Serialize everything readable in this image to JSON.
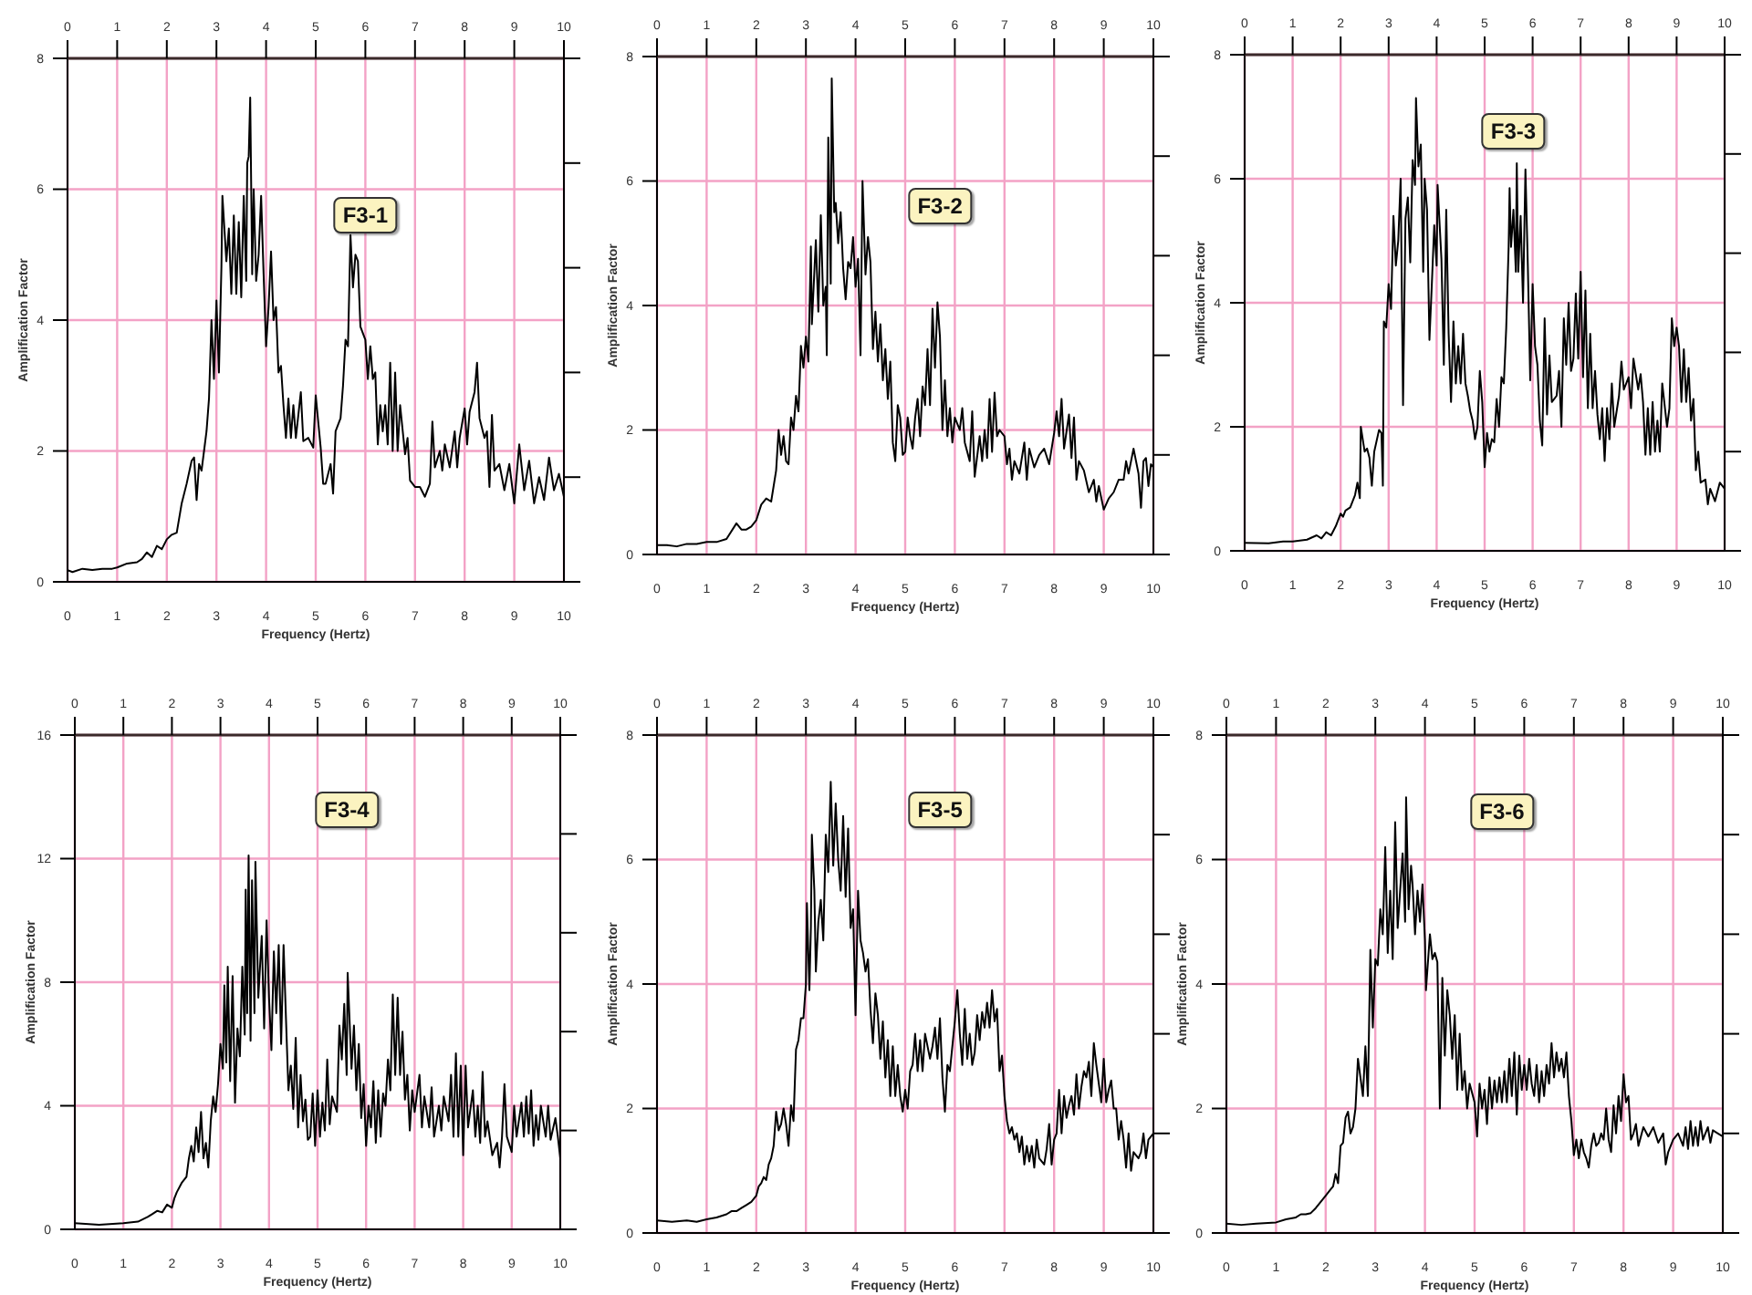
{
  "chart_data": [
    {
      "type": "line",
      "title": "F3-1",
      "xlabel": "Frequency (Hertz)",
      "ylabel": "Amplification Factor",
      "color": "#000000",
      "grid": true,
      "xlim": [
        0,
        10
      ],
      "xticks": [
        0,
        1,
        2,
        3,
        4,
        5,
        6,
        7,
        8,
        9,
        10
      ],
      "x2lim": [
        0,
        10
      ],
      "x2ticks": [
        0,
        1,
        2,
        3,
        4,
        5,
        6,
        7,
        8,
        9,
        10
      ],
      "ylim": [
        0,
        8
      ],
      "yticks": [
        0,
        2,
        4,
        6,
        8
      ],
      "x": [
        0,
        0.1,
        0.3,
        0.5,
        0.7,
        0.9,
        1.0,
        1.2,
        1.4,
        1.5,
        1.6,
        1.7,
        1.8,
        1.9,
        2.0,
        2.1,
        2.2,
        2.3,
        2.4,
        2.5,
        2.55,
        2.6,
        2.65,
        2.7,
        2.75,
        2.8,
        2.85,
        2.9,
        2.95,
        3.0,
        3.05,
        3.1,
        3.12,
        3.2,
        3.25,
        3.3,
        3.35,
        3.4,
        3.45,
        3.5,
        3.55,
        3.6,
        3.62,
        3.65,
        3.68,
        3.72,
        3.75,
        3.8,
        3.85,
        3.9,
        3.95,
        4.0,
        4.05,
        4.1,
        4.15,
        4.2,
        4.25,
        4.3,
        4.35,
        4.4,
        4.45,
        4.5,
        4.55,
        4.6,
        4.7,
        4.75,
        4.85,
        4.95,
        5.0,
        5.1,
        5.15,
        5.2,
        5.3,
        5.35,
        5.4,
        5.5,
        5.55,
        5.6,
        5.65,
        5.7,
        5.75,
        5.8,
        5.85,
        5.9,
        6.0,
        6.05,
        6.1,
        6.15,
        6.2,
        6.25,
        6.3,
        6.35,
        6.4,
        6.45,
        6.5,
        6.55,
        6.6,
        6.65,
        6.7,
        6.8,
        6.85,
        6.9,
        7.0,
        7.1,
        7.2,
        7.3,
        7.35,
        7.4,
        7.5,
        7.55,
        7.6,
        7.7,
        7.8,
        7.85,
        7.9,
        8.0,
        8.05,
        8.1,
        8.2,
        8.25,
        8.3,
        8.4,
        8.45,
        8.5,
        8.55,
        8.6,
        8.7,
        8.8,
        8.9,
        9.0,
        9.1,
        9.2,
        9.3,
        9.4,
        9.5,
        9.6,
        9.7,
        9.8,
        9.9,
        10.0
      ],
      "values": [
        0.18,
        0.15,
        0.2,
        0.18,
        0.2,
        0.2,
        0.22,
        0.28,
        0.3,
        0.35,
        0.45,
        0.38,
        0.55,
        0.5,
        0.65,
        0.72,
        0.75,
        1.2,
        1.5,
        1.85,
        1.9,
        1.25,
        1.8,
        1.7,
        2.0,
        2.3,
        2.8,
        4.0,
        3.1,
        4.3,
        3.2,
        4.8,
        5.9,
        4.9,
        5.4,
        4.4,
        5.6,
        4.4,
        5.5,
        4.35,
        5.9,
        4.6,
        6.4,
        6.5,
        7.4,
        4.7,
        6.0,
        4.6,
        5.0,
        5.9,
        4.7,
        3.6,
        4.2,
        5.05,
        4.0,
        4.2,
        3.2,
        3.3,
        2.7,
        2.2,
        2.8,
        2.2,
        2.7,
        2.2,
        2.9,
        2.15,
        2.2,
        2.05,
        2.85,
        2.05,
        1.5,
        1.5,
        1.8,
        1.35,
        2.3,
        2.5,
        3.0,
        3.7,
        3.6,
        5.3,
        4.5,
        5.0,
        4.9,
        3.9,
        3.7,
        3.1,
        3.6,
        3.1,
        3.2,
        2.1,
        2.7,
        2.3,
        2.7,
        2.1,
        3.35,
        2.0,
        3.2,
        2.0,
        2.7,
        1.95,
        2.2,
        1.55,
        1.45,
        1.45,
        1.3,
        1.5,
        2.45,
        1.75,
        2.0,
        1.7,
        2.1,
        1.75,
        2.3,
        1.75,
        2.2,
        2.65,
        2.1,
        2.6,
        2.9,
        3.35,
        2.5,
        2.2,
        2.3,
        1.45,
        2.55,
        1.7,
        1.8,
        1.4,
        1.8,
        1.2,
        2.1,
        1.4,
        1.85,
        1.2,
        1.6,
        1.25,
        1.9,
        1.4,
        1.65,
        1.3
      ]
    },
    {
      "type": "line",
      "title": "F3-2",
      "xlabel": "Frequency (Hertz)",
      "ylabel": "Amplification Factor",
      "color": "#000000",
      "grid": true,
      "xlim": [
        0,
        10
      ],
      "xticks": [
        0,
        1,
        2,
        3,
        4,
        5,
        6,
        7,
        8,
        9,
        10
      ],
      "x2lim": [
        0,
        10
      ],
      "x2ticks": [
        0,
        1,
        2,
        3,
        4,
        5,
        6,
        7,
        8,
        9,
        10
      ],
      "ylim": [
        0,
        8
      ],
      "yticks": [
        0,
        2,
        4,
        6,
        8
      ],
      "x": [
        0,
        0.2,
        0.4,
        0.6,
        0.8,
        1.0,
        1.2,
        1.4,
        1.6,
        1.7,
        1.8,
        1.9,
        2.0,
        2.1,
        2.2,
        2.3,
        2.4,
        2.45,
        2.5,
        2.55,
        2.6,
        2.65,
        2.7,
        2.75,
        2.8,
        2.85,
        2.9,
        2.95,
        3.0,
        3.05,
        3.1,
        3.12,
        3.2,
        3.25,
        3.3,
        3.35,
        3.4,
        3.42,
        3.45,
        3.5,
        3.52,
        3.57,
        3.6,
        3.65,
        3.7,
        3.75,
        3.8,
        3.85,
        3.9,
        3.95,
        4.0,
        4.05,
        4.1,
        4.14,
        4.2,
        4.25,
        4.3,
        4.35,
        4.4,
        4.45,
        4.5,
        4.55,
        4.6,
        4.65,
        4.7,
        4.75,
        4.8,
        4.85,
        4.9,
        4.95,
        5.0,
        5.05,
        5.1,
        5.15,
        5.2,
        5.25,
        5.3,
        5.35,
        5.4,
        5.45,
        5.5,
        5.55,
        5.6,
        5.65,
        5.7,
        5.75,
        5.8,
        5.85,
        5.9,
        5.95,
        6.0,
        6.1,
        6.15,
        6.2,
        6.3,
        6.35,
        6.4,
        6.5,
        6.55,
        6.6,
        6.65,
        6.7,
        6.75,
        6.8,
        6.85,
        6.9,
        7.0,
        7.05,
        7.1,
        7.15,
        7.2,
        7.3,
        7.4,
        7.45,
        7.5,
        7.6,
        7.7,
        7.8,
        7.9,
        8.0,
        8.05,
        8.1,
        8.15,
        8.2,
        8.3,
        8.35,
        8.4,
        8.45,
        8.5,
        8.6,
        8.7,
        8.8,
        8.85,
        8.9,
        9.0,
        9.1,
        9.2,
        9.3,
        9.4,
        9.45,
        9.5,
        9.6,
        9.7,
        9.75,
        9.8,
        9.85,
        9.9,
        9.95,
        10.0
      ],
      "values": [
        0.15,
        0.15,
        0.13,
        0.17,
        0.17,
        0.2,
        0.2,
        0.25,
        0.5,
        0.4,
        0.4,
        0.45,
        0.55,
        0.8,
        0.9,
        0.85,
        1.35,
        2.0,
        1.6,
        1.9,
        1.5,
        1.45,
        2.2,
        2.0,
        2.55,
        2.3,
        3.35,
        3.0,
        3.5,
        3.1,
        4.95,
        3.7,
        5.05,
        3.9,
        5.45,
        4.0,
        4.3,
        3.2,
        6.7,
        4.35,
        7.65,
        5.5,
        5.65,
        5.0,
        5.5,
        4.6,
        4.1,
        4.7,
        4.6,
        5.1,
        4.3,
        4.75,
        3.2,
        6.0,
        4.5,
        5.1,
        4.7,
        3.3,
        3.9,
        3.1,
        3.7,
        2.8,
        3.3,
        2.5,
        3.1,
        1.8,
        1.5,
        2.4,
        2.2,
        1.6,
        1.65,
        2.2,
        1.9,
        1.7,
        2.2,
        2.5,
        1.9,
        2.7,
        2.4,
        3.3,
        2.4,
        3.95,
        3.0,
        4.05,
        3.5,
        2.0,
        2.8,
        1.9,
        2.35,
        1.8,
        2.2,
        2.0,
        2.35,
        1.8,
        1.5,
        2.3,
        1.25,
        1.9,
        1.5,
        2.0,
        1.55,
        2.5,
        1.65,
        2.6,
        1.9,
        2.0,
        1.9,
        1.45,
        1.7,
        1.2,
        1.5,
        1.3,
        1.8,
        1.2,
        1.7,
        1.4,
        1.6,
        1.7,
        1.45,
        1.95,
        2.3,
        1.9,
        2.5,
        1.7,
        2.25,
        1.55,
        2.2,
        1.2,
        1.5,
        1.35,
        1.0,
        1.2,
        0.85,
        1.1,
        0.72,
        0.9,
        1.0,
        1.2,
        1.2,
        1.5,
        1.3,
        1.7,
        1.3,
        0.75,
        1.5,
        1.55,
        1.1,
        1.45,
        1.4
      ]
    },
    {
      "type": "line",
      "title": "F3-3",
      "xlabel": "Frequency (Hertz)",
      "ylabel": "Amplification Factor",
      "color": "#000000",
      "grid": true,
      "xlim": [
        0,
        10
      ],
      "xticks": [
        0,
        1,
        2,
        3,
        4,
        5,
        6,
        7,
        8,
        9,
        10
      ],
      "x2lim": [
        0,
        10
      ],
      "x2ticks": [
        0,
        1,
        2,
        3,
        4,
        5,
        6,
        7,
        8,
        9,
        10
      ],
      "ylim": [
        0,
        8
      ],
      "yticks": [
        0,
        2,
        4,
        6,
        8
      ],
      "x": [
        0,
        0.5,
        0.8,
        1.0,
        1.3,
        1.5,
        1.6,
        1.7,
        1.8,
        1.9,
        2.0,
        2.05,
        2.1,
        2.2,
        2.3,
        2.35,
        2.4,
        2.42,
        2.5,
        2.55,
        2.6,
        2.65,
        2.7,
        2.8,
        2.85,
        2.88,
        2.9,
        2.95,
        3.0,
        3.05,
        3.1,
        3.15,
        3.2,
        3.25,
        3.3,
        3.35,
        3.4,
        3.45,
        3.5,
        3.55,
        3.57,
        3.62,
        3.67,
        3.72,
        3.75,
        3.8,
        3.85,
        3.9,
        3.95,
        4.0,
        4.02,
        4.1,
        4.15,
        4.2,
        4.25,
        4.3,
        4.35,
        4.4,
        4.45,
        4.5,
        4.55,
        4.6,
        4.65,
        4.7,
        4.75,
        4.8,
        4.85,
        4.9,
        4.95,
        5.0,
        5.05,
        5.1,
        5.15,
        5.2,
        5.25,
        5.3,
        5.35,
        5.4,
        5.45,
        5.5,
        5.52,
        5.55,
        5.6,
        5.65,
        5.67,
        5.7,
        5.75,
        5.8,
        5.85,
        5.9,
        5.95,
        6.0,
        6.05,
        6.1,
        6.15,
        6.2,
        6.25,
        6.3,
        6.35,
        6.4,
        6.5,
        6.55,
        6.6,
        6.65,
        6.7,
        6.75,
        6.8,
        6.85,
        6.9,
        6.95,
        7.0,
        7.05,
        7.1,
        7.15,
        7.2,
        7.25,
        7.3,
        7.35,
        7.4,
        7.45,
        7.5,
        7.55,
        7.6,
        7.65,
        7.7,
        7.8,
        7.85,
        7.9,
        8.0,
        8.05,
        8.1,
        8.2,
        8.25,
        8.3,
        8.35,
        8.4,
        8.45,
        8.5,
        8.55,
        8.6,
        8.65,
        8.7,
        8.8,
        8.85,
        8.9,
        8.95,
        9.0,
        9.05,
        9.1,
        9.15,
        9.2,
        9.25,
        9.3,
        9.35,
        9.4,
        9.45,
        9.5,
        9.6,
        9.65,
        9.7,
        9.8,
        9.9,
        10.0
      ],
      "values": [
        0.13,
        0.12,
        0.15,
        0.15,
        0.18,
        0.25,
        0.2,
        0.3,
        0.25,
        0.4,
        0.6,
        0.55,
        0.65,
        0.7,
        0.9,
        1.1,
        0.85,
        2.0,
        1.6,
        1.65,
        1.5,
        1.05,
        1.6,
        1.95,
        1.9,
        1.05,
        3.7,
        3.6,
        4.3,
        3.9,
        5.4,
        4.6,
        5.0,
        6.0,
        2.35,
        5.35,
        5.7,
        4.65,
        6.3,
        5.9,
        7.3,
        6.2,
        6.55,
        4.5,
        6.0,
        5.5,
        3.4,
        4.3,
        5.25,
        4.6,
        5.9,
        4.7,
        3.0,
        5.5,
        3.5,
        2.4,
        3.7,
        2.7,
        3.3,
        2.7,
        3.5,
        2.7,
        2.5,
        2.25,
        2.1,
        1.8,
        2.0,
        2.9,
        2.4,
        1.35,
        1.9,
        1.6,
        1.8,
        1.75,
        2.45,
        2.0,
        2.8,
        2.7,
        3.6,
        4.9,
        5.85,
        4.9,
        5.5,
        4.5,
        6.25,
        4.5,
        5.4,
        4.0,
        6.15,
        4.6,
        2.75,
        4.3,
        3.3,
        3.0,
        2.1,
        1.7,
        3.75,
        2.2,
        3.15,
        2.4,
        2.5,
        2.9,
        2.0,
        3.75,
        3.0,
        4.0,
        2.9,
        3.1,
        4.15,
        3.1,
        4.5,
        2.8,
        4.2,
        2.3,
        3.5,
        2.3,
        2.9,
        2.2,
        1.8,
        2.3,
        1.45,
        2.3,
        1.8,
        2.7,
        2.0,
        2.5,
        3.05,
        2.6,
        2.8,
        2.3,
        3.1,
        2.6,
        2.85,
        2.4,
        1.55,
        2.3,
        1.55,
        2.4,
        1.6,
        2.1,
        1.6,
        2.7,
        2.0,
        2.3,
        3.75,
        3.3,
        3.6,
        3.3,
        2.4,
        3.25,
        2.4,
        2.95,
        2.1,
        2.45,
        1.3,
        1.6,
        1.1,
        1.15,
        0.75,
        1.0,
        0.8,
        1.1,
        1.0
      ]
    },
    {
      "type": "line",
      "title": "F3-4",
      "xlabel": "Frequency (Hertz)",
      "ylabel": "Amplification Factor",
      "color": "#000000",
      "grid": true,
      "xlim": [
        0,
        10
      ],
      "xticks": [
        0,
        1,
        2,
        3,
        4,
        5,
        6,
        7,
        8,
        9,
        10
      ],
      "x2lim": [
        0,
        10
      ],
      "x2ticks": [
        0,
        1,
        2,
        3,
        4,
        5,
        6,
        7,
        8,
        9,
        10
      ],
      "ylim": [
        0,
        16
      ],
      "yticks": [
        0,
        4,
        8,
        12,
        16
      ],
      "x": [
        0,
        0.5,
        1.0,
        1.3,
        1.5,
        1.6,
        1.7,
        1.8,
        1.9,
        2.0,
        2.05,
        2.1,
        2.2,
        2.3,
        2.35,
        2.4,
        2.45,
        2.5,
        2.55,
        2.6,
        2.65,
        2.7,
        2.75,
        2.8,
        2.85,
        2.9,
        2.95,
        3.0,
        3.05,
        3.08,
        3.12,
        3.15,
        3.2,
        3.25,
        3.3,
        3.35,
        3.4,
        3.45,
        3.5,
        3.52,
        3.55,
        3.58,
        3.62,
        3.65,
        3.7,
        3.72,
        3.78,
        3.85,
        3.9,
        3.95,
        4.0,
        4.05,
        4.1,
        4.15,
        4.2,
        4.25,
        4.3,
        4.35,
        4.4,
        4.45,
        4.5,
        4.55,
        4.6,
        4.65,
        4.7,
        4.75,
        4.8,
        4.85,
        4.9,
        4.95,
        5.0,
        5.05,
        5.1,
        5.15,
        5.2,
        5.25,
        5.3,
        5.4,
        5.45,
        5.5,
        5.55,
        5.6,
        5.62,
        5.7,
        5.75,
        5.8,
        5.85,
        5.9,
        5.95,
        6.0,
        6.05,
        6.1,
        6.15,
        6.2,
        6.25,
        6.3,
        6.35,
        6.4,
        6.45,
        6.5,
        6.55,
        6.6,
        6.65,
        6.7,
        6.75,
        6.8,
        6.85,
        6.9,
        6.95,
        7.0,
        7.1,
        7.15,
        7.2,
        7.3,
        7.35,
        7.4,
        7.5,
        7.55,
        7.6,
        7.7,
        7.75,
        7.8,
        7.85,
        7.9,
        7.95,
        8.0,
        8.05,
        8.1,
        8.2,
        8.25,
        8.3,
        8.35,
        8.4,
        8.45,
        8.5,
        8.6,
        8.7,
        8.75,
        8.8,
        8.85,
        8.9,
        9.0,
        9.05,
        9.1,
        9.2,
        9.25,
        9.3,
        9.35,
        9.4,
        9.45,
        9.5,
        9.55,
        9.6,
        9.7,
        9.75,
        9.8,
        9.9,
        9.95,
        10.0
      ],
      "values": [
        0.2,
        0.15,
        0.2,
        0.25,
        0.4,
        0.5,
        0.6,
        0.55,
        0.8,
        0.7,
        1.0,
        1.2,
        1.5,
        1.7,
        2.3,
        2.7,
        2.2,
        3.3,
        2.5,
        3.8,
        2.3,
        2.8,
        2.0,
        3.5,
        4.3,
        3.8,
        4.7,
        6.0,
        5.2,
        7.9,
        5.4,
        8.5,
        4.8,
        8.2,
        4.1,
        6.5,
        5.6,
        8.5,
        6.3,
        11.0,
        7.0,
        12.1,
        6.1,
        11.3,
        7.0,
        11.9,
        7.5,
        9.5,
        6.5,
        10.0,
        7.5,
        5.8,
        9.0,
        7.0,
        9.2,
        6.0,
        9.2,
        6.8,
        4.5,
        5.3,
        3.9,
        6.2,
        3.3,
        5.0,
        3.5,
        4.2,
        2.9,
        3.0,
        4.4,
        2.7,
        4.5,
        3.0,
        4.1,
        3.2,
        5.5,
        3.4,
        4.3,
        3.8,
        6.6,
        5.5,
        7.3,
        5.0,
        8.3,
        5.2,
        6.6,
        4.5,
        6.0,
        3.6,
        4.7,
        2.7,
        4.0,
        3.3,
        4.8,
        2.8,
        4.5,
        3.0,
        4.4,
        4.0,
        5.5,
        4.5,
        7.6,
        5.0,
        7.5,
        5.0,
        6.4,
        4.2,
        5.0,
        3.2,
        4.5,
        3.8,
        5.0,
        3.3,
        4.3,
        3.3,
        4.6,
        3.0,
        4.0,
        3.2,
        4.3,
        3.5,
        5.0,
        3.0,
        5.7,
        3.0,
        5.3,
        2.4,
        5.3,
        3.3,
        4.5,
        3.0,
        4.0,
        2.8,
        5.1,
        3.0,
        3.5,
        2.4,
        2.8,
        2.0,
        3.0,
        4.7,
        3.0,
        2.5,
        4.0,
        3.0,
        4.1,
        3.0,
        4.3,
        3.1,
        4.5,
        2.7,
        3.7,
        2.9,
        4.0,
        3.0,
        4.0,
        2.9,
        3.6,
        3.0,
        2.3
      ]
    },
    {
      "type": "line",
      "title": "F3-5",
      "xlabel": "Frequency (Hertz)",
      "ylabel": "Amplification Factor",
      "color": "#000000",
      "grid": true,
      "xlim": [
        0,
        10
      ],
      "xticks": [
        0,
        1,
        2,
        3,
        4,
        5,
        6,
        7,
        8,
        9,
        10
      ],
      "x2lim": [
        0,
        10
      ],
      "x2ticks": [
        0,
        1,
        2,
        3,
        4,
        5,
        6,
        7,
        8,
        9,
        10
      ],
      "ylim": [
        0,
        8
      ],
      "yticks": [
        0,
        2,
        4,
        6,
        8
      ],
      "x": [
        0,
        0.3,
        0.6,
        0.8,
        1.0,
        1.2,
        1.4,
        1.5,
        1.6,
        1.7,
        1.8,
        1.9,
        2.0,
        2.05,
        2.1,
        2.15,
        2.2,
        2.25,
        2.3,
        2.35,
        2.4,
        2.45,
        2.5,
        2.55,
        2.6,
        2.65,
        2.7,
        2.75,
        2.8,
        2.85,
        2.9,
        2.95,
        3.0,
        3.02,
        3.07,
        3.1,
        3.12,
        3.17,
        3.2,
        3.25,
        3.3,
        3.35,
        3.4,
        3.45,
        3.5,
        3.55,
        3.6,
        3.65,
        3.7,
        3.75,
        3.8,
        3.85,
        3.9,
        3.95,
        4.0,
        4.05,
        4.1,
        4.15,
        4.2,
        4.25,
        4.3,
        4.35,
        4.4,
        4.45,
        4.5,
        4.55,
        4.6,
        4.65,
        4.7,
        4.75,
        4.8,
        4.85,
        4.9,
        4.95,
        5.0,
        5.05,
        5.1,
        5.15,
        5.2,
        5.25,
        5.3,
        5.35,
        5.4,
        5.5,
        5.55,
        5.6,
        5.65,
        5.7,
        5.75,
        5.8,
        5.85,
        5.9,
        6.0,
        6.05,
        6.1,
        6.15,
        6.2,
        6.25,
        6.3,
        6.35,
        6.4,
        6.45,
        6.5,
        6.55,
        6.6,
        6.65,
        6.7,
        6.75,
        6.8,
        6.85,
        6.9,
        6.95,
        7.0,
        7.05,
        7.1,
        7.15,
        7.2,
        7.25,
        7.3,
        7.35,
        7.4,
        7.45,
        7.5,
        7.55,
        7.6,
        7.65,
        7.7,
        7.8,
        7.85,
        7.9,
        7.95,
        8.0,
        8.05,
        8.1,
        8.15,
        8.2,
        8.25,
        8.3,
        8.35,
        8.4,
        8.45,
        8.5,
        8.55,
        8.6,
        8.65,
        8.7,
        8.75,
        8.8,
        8.85,
        8.9,
        8.95,
        9.0,
        9.05,
        9.1,
        9.15,
        9.2,
        9.25,
        9.3,
        9.35,
        9.4,
        9.45,
        9.5,
        9.55,
        9.6,
        9.7,
        9.75,
        9.8,
        9.85,
        9.9,
        10.0
      ],
      "values": [
        0.2,
        0.18,
        0.2,
        0.18,
        0.22,
        0.25,
        0.3,
        0.35,
        0.35,
        0.4,
        0.45,
        0.5,
        0.6,
        0.75,
        0.8,
        0.9,
        0.85,
        1.1,
        1.2,
        1.4,
        1.95,
        1.65,
        1.75,
        2.0,
        1.75,
        1.4,
        2.05,
        1.8,
        2.95,
        3.1,
        3.45,
        3.45,
        4.0,
        5.3,
        3.9,
        4.9,
        6.4,
        5.5,
        4.2,
        5.0,
        5.35,
        4.7,
        6.4,
        5.8,
        7.25,
        5.9,
        6.9,
        6.0,
        5.5,
        6.7,
        5.4,
        6.5,
        4.9,
        5.2,
        3.5,
        5.5,
        4.7,
        4.5,
        4.2,
        4.4,
        3.6,
        3.05,
        3.85,
        3.5,
        2.8,
        3.4,
        2.5,
        3.1,
        2.2,
        3.0,
        2.2,
        2.7,
        2.2,
        1.95,
        2.3,
        2.0,
        2.6,
        2.7,
        3.2,
        2.6,
        3.1,
        2.6,
        3.2,
        2.8,
        3.0,
        3.3,
        2.8,
        3.45,
        2.5,
        1.95,
        2.7,
        2.6,
        3.4,
        3.9,
        3.2,
        2.7,
        3.6,
        2.8,
        3.2,
        2.7,
        2.9,
        3.5,
        3.1,
        3.55,
        3.3,
        3.7,
        3.3,
        3.9,
        3.4,
        3.6,
        2.6,
        2.85,
        2.2,
        1.8,
        1.6,
        1.7,
        1.5,
        1.6,
        1.3,
        1.55,
        1.1,
        1.4,
        1.15,
        1.4,
        1.05,
        1.5,
        1.2,
        1.1,
        1.35,
        1.75,
        1.1,
        1.5,
        1.6,
        2.3,
        1.6,
        2.2,
        1.85,
        2.05,
        2.2,
        1.9,
        2.55,
        2.0,
        2.35,
        2.6,
        2.5,
        2.75,
        2.2,
        3.05,
        2.7,
        2.4,
        2.1,
        2.8,
        2.1,
        2.3,
        2.45,
        2.0,
        2.0,
        1.5,
        1.8,
        1.5,
        1.05,
        1.6,
        1.0,
        1.3,
        1.2,
        1.3,
        1.6,
        1.2,
        1.5,
        1.6
      ]
    },
    {
      "type": "line",
      "title": "F3-6",
      "xlabel": "Frequency (Hertz)",
      "ylabel": "Amplification Factor",
      "color": "#000000",
      "grid": true,
      "xlim": [
        0,
        10
      ],
      "xticks": [
        0,
        1,
        2,
        3,
        4,
        5,
        6,
        7,
        8,
        9,
        10
      ],
      "x2lim": [
        0,
        10
      ],
      "x2ticks": [
        0,
        1,
        2,
        3,
        4,
        5,
        6,
        7,
        8,
        9,
        10
      ],
      "ylim": [
        0,
        8
      ],
      "yticks": [
        0,
        2,
        4,
        6,
        8
      ],
      "x": [
        0,
        0.3,
        0.6,
        1.0,
        1.2,
        1.4,
        1.5,
        1.6,
        1.7,
        1.8,
        1.9,
        2.0,
        2.1,
        2.15,
        2.2,
        2.25,
        2.3,
        2.35,
        2.4,
        2.45,
        2.5,
        2.55,
        2.6,
        2.65,
        2.7,
        2.75,
        2.8,
        2.85,
        2.9,
        2.95,
        3.0,
        3.05,
        3.1,
        3.15,
        3.2,
        3.25,
        3.3,
        3.35,
        3.4,
        3.45,
        3.5,
        3.55,
        3.6,
        3.62,
        3.67,
        3.72,
        3.75,
        3.8,
        3.85,
        3.9,
        3.95,
        4.0,
        4.02,
        4.1,
        4.15,
        4.2,
        4.25,
        4.3,
        4.35,
        4.4,
        4.45,
        4.5,
        4.55,
        4.6,
        4.65,
        4.7,
        4.75,
        4.8,
        4.85,
        4.9,
        5.0,
        5.05,
        5.1,
        5.15,
        5.2,
        5.25,
        5.3,
        5.35,
        5.4,
        5.45,
        5.5,
        5.55,
        5.6,
        5.65,
        5.7,
        5.75,
        5.8,
        5.85,
        5.9,
        5.95,
        6.0,
        6.05,
        6.1,
        6.15,
        6.2,
        6.25,
        6.3,
        6.35,
        6.4,
        6.45,
        6.5,
        6.55,
        6.6,
        6.65,
        6.7,
        6.75,
        6.8,
        6.85,
        6.9,
        6.95,
        7.0,
        7.05,
        7.1,
        7.15,
        7.2,
        7.25,
        7.3,
        7.35,
        7.4,
        7.45,
        7.5,
        7.55,
        7.6,
        7.65,
        7.7,
        7.75,
        7.8,
        7.85,
        7.9,
        7.95,
        8.0,
        8.05,
        8.1,
        8.15,
        8.2,
        8.25,
        8.3,
        8.4,
        8.5,
        8.6,
        8.7,
        8.8,
        8.85,
        8.9,
        9.0,
        9.1,
        9.2,
        9.25,
        9.3,
        9.35,
        9.4,
        9.45,
        9.5,
        9.55,
        9.6,
        9.7,
        9.75,
        9.8,
        9.9,
        10.0
      ],
      "values": [
        0.15,
        0.13,
        0.15,
        0.17,
        0.22,
        0.25,
        0.3,
        0.3,
        0.32,
        0.4,
        0.5,
        0.6,
        0.7,
        0.75,
        0.95,
        0.8,
        1.4,
        1.45,
        1.85,
        1.95,
        1.6,
        1.7,
        2.0,
        2.8,
        2.5,
        2.2,
        3.0,
        2.2,
        4.55,
        3.3,
        4.4,
        4.3,
        5.2,
        4.8,
        6.2,
        4.5,
        5.5,
        4.4,
        6.6,
        4.9,
        5.5,
        6.1,
        5.0,
        7.0,
        5.2,
        5.9,
        5.6,
        4.8,
        5.5,
        5.0,
        5.6,
        4.7,
        3.9,
        4.8,
        4.4,
        4.5,
        4.35,
        2.0,
        4.1,
        2.85,
        3.9,
        3.5,
        2.8,
        3.5,
        2.3,
        3.2,
        2.3,
        2.6,
        2.0,
        2.4,
        2.1,
        1.55,
        2.4,
        2.0,
        2.3,
        1.75,
        2.5,
        2.0,
        2.45,
        2.1,
        2.5,
        2.1,
        2.6,
        2.1,
        2.8,
        2.2,
        2.9,
        1.9,
        2.85,
        2.3,
        2.7,
        2.3,
        2.8,
        2.4,
        2.2,
        2.7,
        2.1,
        2.6,
        2.2,
        2.7,
        2.4,
        3.05,
        2.5,
        2.9,
        2.6,
        2.8,
        2.5,
        2.9,
        2.2,
        1.8,
        1.25,
        1.5,
        1.2,
        1.5,
        1.3,
        1.2,
        1.05,
        1.4,
        1.6,
        1.4,
        1.45,
        1.6,
        1.5,
        2.0,
        1.5,
        1.3,
        2.05,
        1.6,
        2.2,
        1.8,
        2.55,
        2.1,
        2.2,
        1.5,
        1.6,
        1.75,
        1.4,
        1.7,
        1.55,
        1.7,
        1.45,
        1.6,
        1.1,
        1.3,
        1.5,
        1.6,
        1.4,
        1.7,
        1.35,
        1.8,
        1.4,
        1.7,
        1.4,
        1.8,
        1.5,
        1.7,
        1.45,
        1.65,
        1.6,
        1.55
      ]
    }
  ]
}
